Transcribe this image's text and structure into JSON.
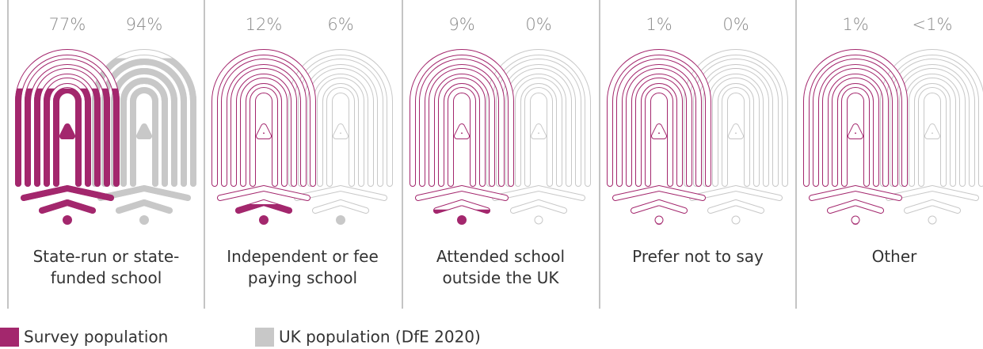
{
  "chart_data": {
    "type": "pictorial",
    "categories": [
      "State-run or state-funded school",
      "Independent or fee paying school",
      "Attended school outside the UK",
      "Prefer not to say",
      "Other"
    ],
    "series": [
      {
        "name": "Survey population",
        "color": "#a3276d",
        "values": [
          77,
          12,
          9,
          1,
          1
        ],
        "value_labels": [
          "77%",
          "12%",
          "9%",
          "1%",
          "1%"
        ]
      },
      {
        "name": "UK population (DfE 2020)",
        "color": "#c8c8c8",
        "values": [
          94,
          6,
          0,
          0,
          0.5
        ],
        "value_labels": [
          "94%",
          "6%",
          "0%",
          "0%",
          "<1%"
        ]
      }
    ],
    "ylim": [
      0,
      100
    ]
  }
}
